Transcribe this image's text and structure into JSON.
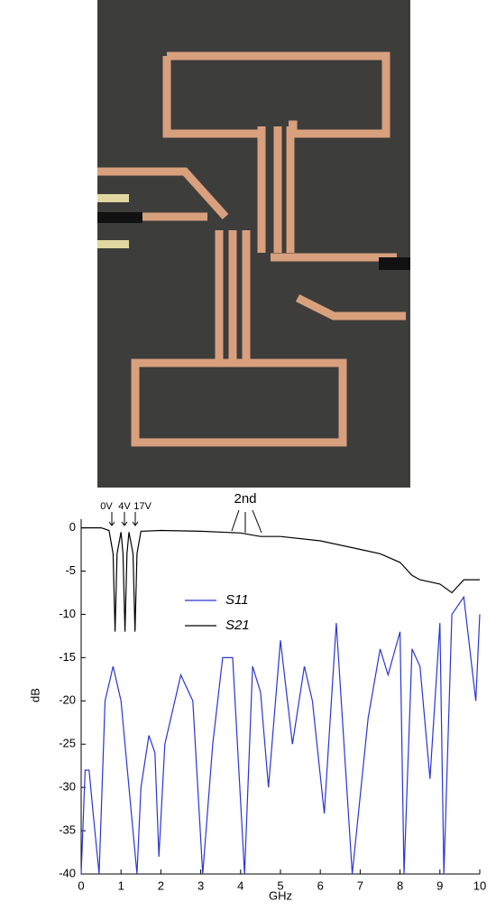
{
  "chart_data": {
    "type": "line",
    "annotations": [
      "0V",
      "4V",
      "17V",
      "2nd"
    ],
    "xlabel": "GHz",
    "ylabel": "dB",
    "xlim": [
      0,
      10
    ],
    "xticks": [
      0,
      1,
      2,
      3,
      4,
      5,
      6,
      7,
      8,
      9,
      10
    ],
    "ylim": [
      -40,
      1
    ],
    "yticks": [
      0,
      -5,
      -10,
      -15,
      -20,
      -25,
      -30,
      -35,
      -40
    ],
    "series": [
      {
        "name": "S11",
        "color": "#2a35d4",
        "x": [
          0,
          0.1,
          0.2,
          0.3,
          0.45,
          0.6,
          0.8,
          1.0,
          1.2,
          1.4,
          1.5,
          1.7,
          1.85,
          1.95,
          2.1,
          2.5,
          2.8,
          3.05,
          3.3,
          3.55,
          3.8,
          4.1,
          4.3,
          4.5,
          4.7,
          5.0,
          5.3,
          5.6,
          5.8,
          6.1,
          6.4,
          6.8,
          7.2,
          7.5,
          7.7,
          8.0,
          8.1,
          8.3,
          8.5,
          8.75,
          9.0,
          9.1,
          9.3,
          9.6,
          9.9,
          10
        ],
        "values": [
          -40,
          -28,
          -28,
          -33,
          -40,
          -20,
          -16,
          -20,
          -30,
          -40,
          -30,
          -24,
          -26,
          -38,
          -25,
          -17,
          -20,
          -40,
          -25,
          -15,
          -15,
          -40,
          -16,
          -19,
          -30,
          -13,
          -25,
          -16,
          -20,
          -33,
          -11,
          -40,
          -22,
          -14,
          -17,
          -12,
          -40,
          -14,
          -16,
          -29,
          -11,
          -40,
          -10,
          -8,
          -20,
          -10
        ]
      },
      {
        "name": "S21",
        "color": "#000000",
        "x": [
          0,
          0.5,
          0.7,
          0.8,
          0.85,
          0.9,
          1.0,
          1.05,
          1.1,
          1.15,
          1.2,
          1.3,
          1.35,
          1.4,
          1.5,
          2,
          3,
          4,
          4.5,
          5,
          6,
          7,
          7.5,
          8,
          8.3,
          8.5,
          9,
          9.3,
          9.6,
          10
        ],
        "values": [
          0,
          0,
          -0.3,
          -3,
          -12,
          -3,
          -0.5,
          -3,
          -12,
          -3,
          -0.5,
          -3,
          -12,
          -3,
          -0.4,
          -0.3,
          -0.4,
          -0.6,
          -1,
          -1,
          -1.5,
          -2.5,
          -3,
          -4,
          -5.5,
          -6,
          -6.5,
          -7.5,
          -6,
          -6
        ]
      }
    ]
  }
}
